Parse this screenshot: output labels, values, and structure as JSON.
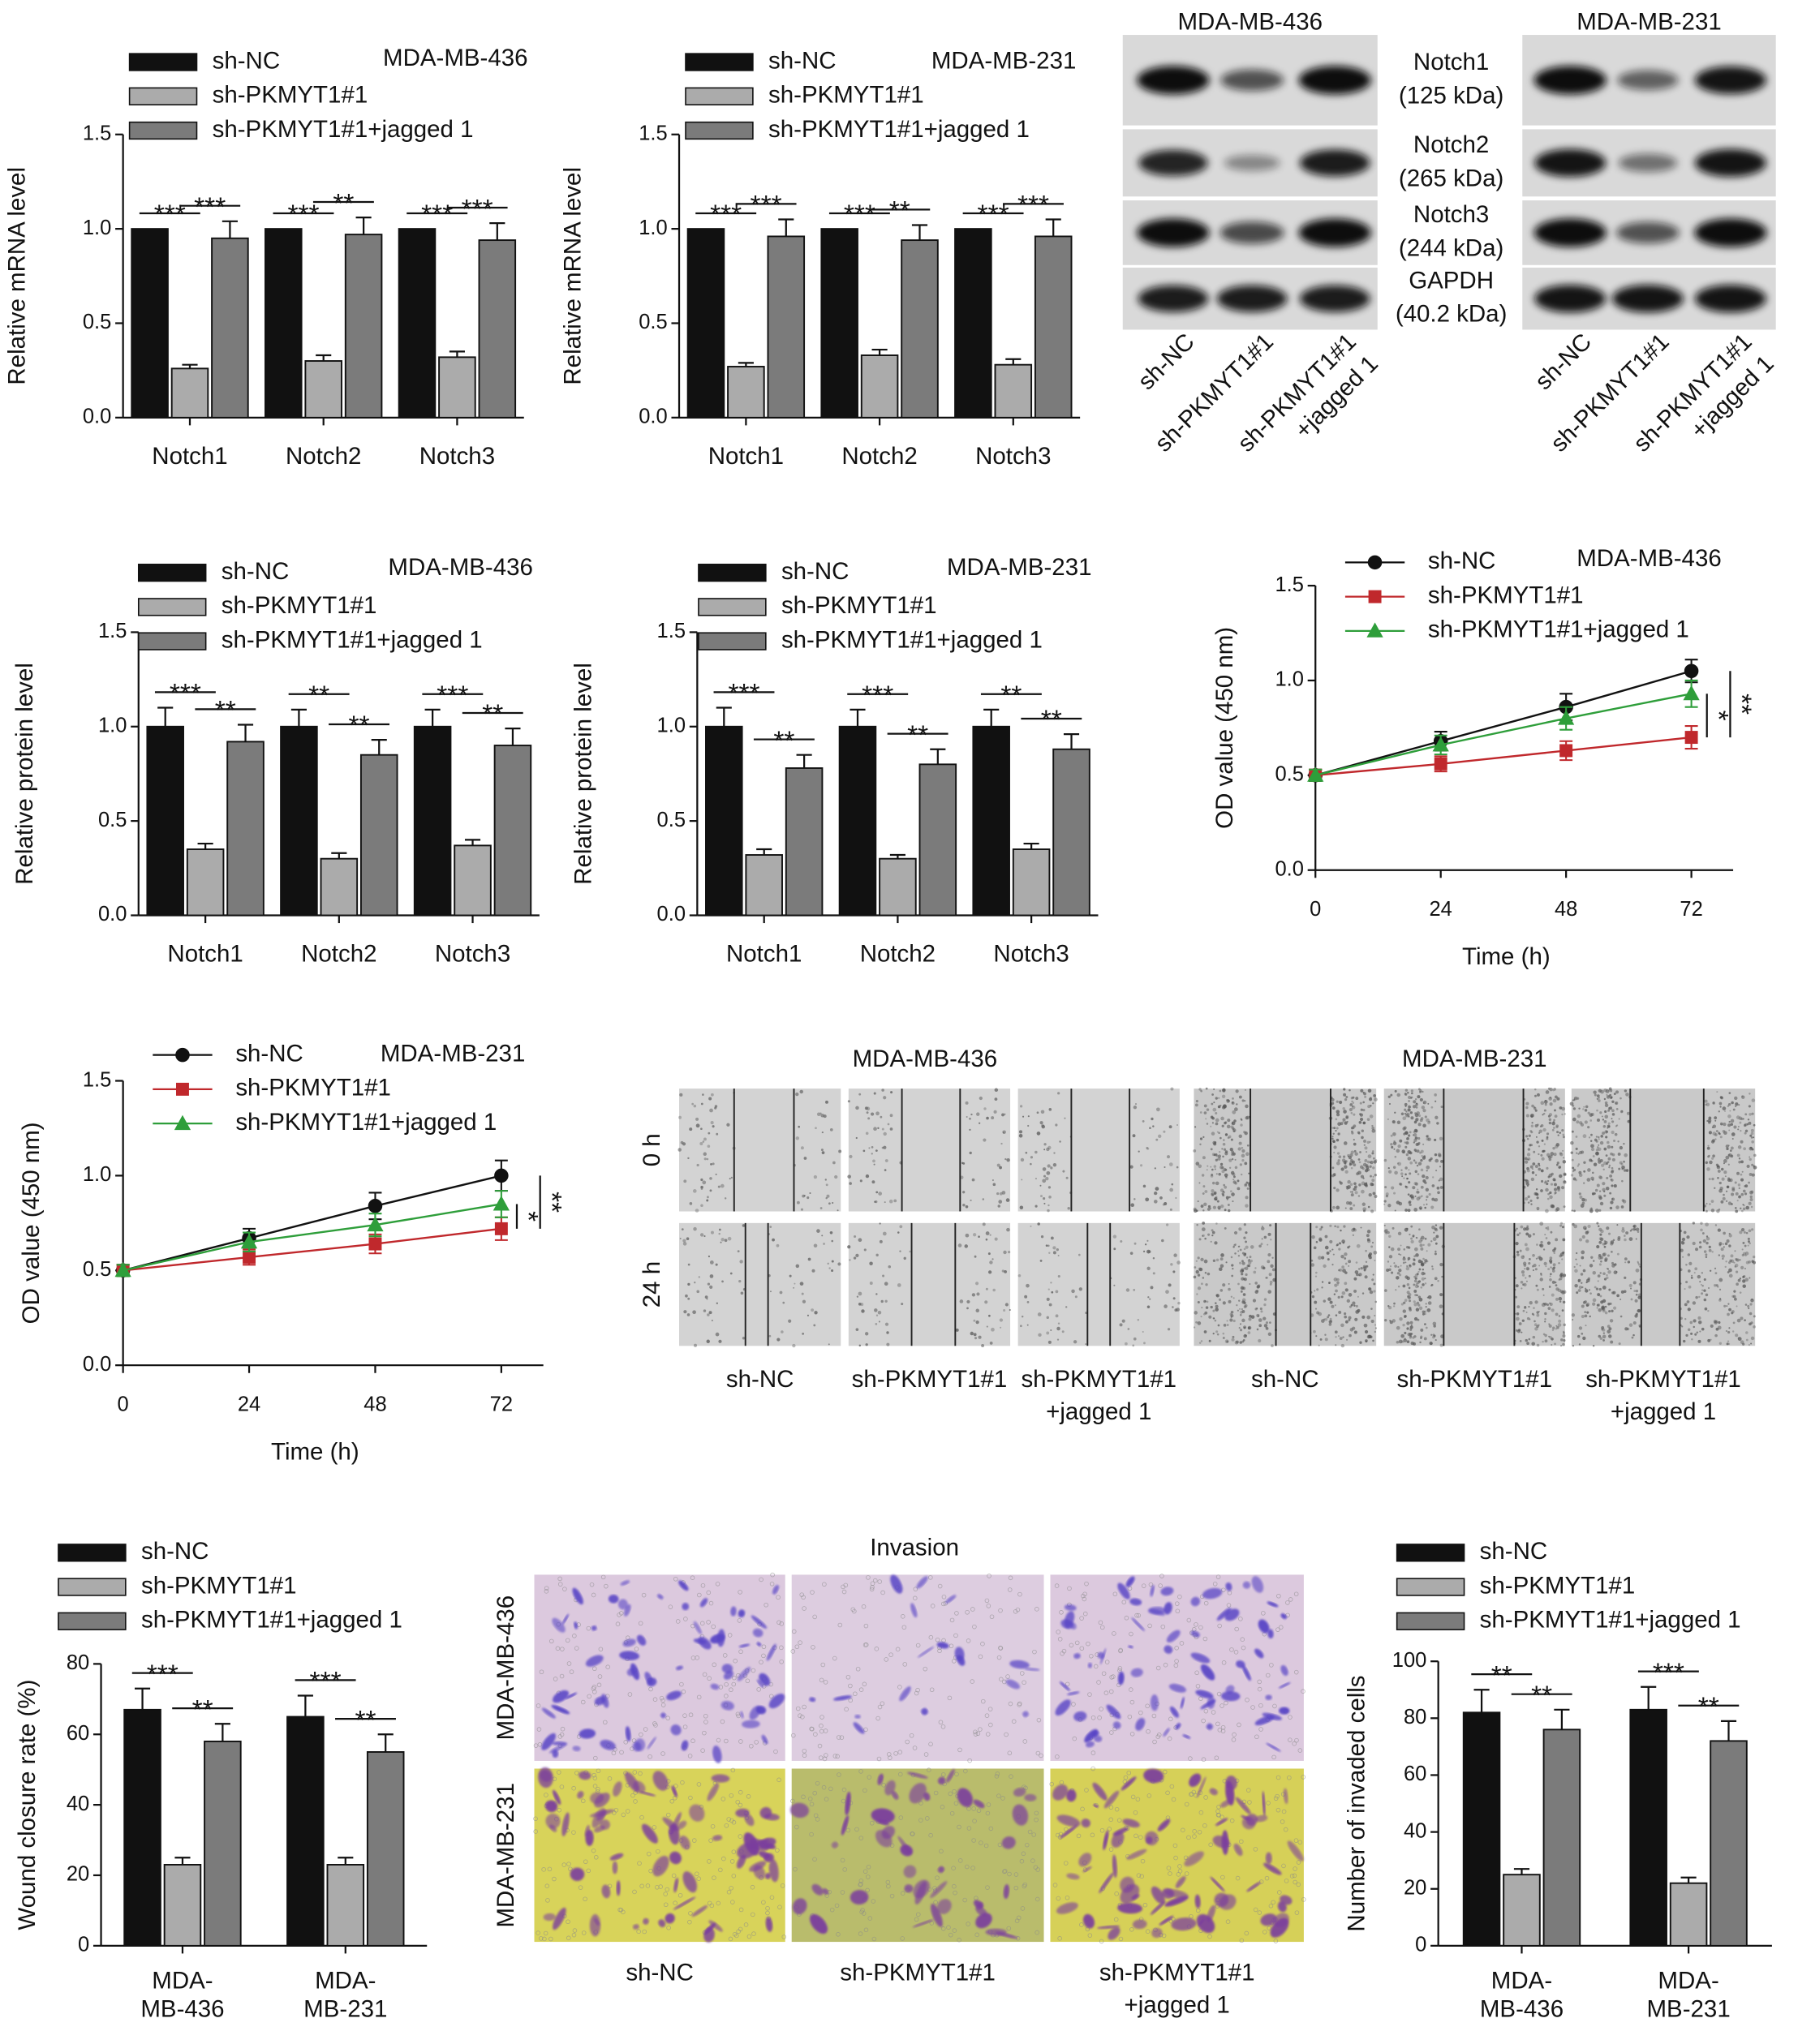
{
  "chart_data": [
    {
      "type": "bar",
      "cell_line": "MDA-MB-436",
      "ylabel": "Relative mRNA level",
      "categories": [
        "Notch1",
        "Notch2",
        "Notch3"
      ],
      "series": [
        {
          "name": "sh-NC",
          "color": "#111111",
          "values": [
            1.0,
            1.0,
            1.0
          ]
        },
        {
          "name": "sh-PKMYT1#1",
          "color": "#ababab",
          "values": [
            0.26,
            0.3,
            0.32
          ],
          "errors": [
            0.02,
            0.03,
            0.03
          ]
        },
        {
          "name": "sh-PKMYT1#1+jagged 1",
          "color": "#7b7b7b",
          "values": [
            0.95,
            0.97,
            0.94
          ],
          "errors": [
            0.09,
            0.09,
            0.09
          ]
        }
      ],
      "ylim": [
        0,
        1.5
      ],
      "yticks": [
        {
          "value": 0,
          "label": "0.0"
        },
        {
          "value": 0.5,
          "label": "0.5"
        },
        {
          "value": 1,
          "label": "1.0"
        },
        {
          "value": 1.5,
          "label": "1.5"
        }
      ],
      "significance": [
        [
          "***",
          "***"
        ],
        [
          "***",
          "**"
        ],
        [
          "***",
          "***"
        ]
      ]
    },
    {
      "type": "bar",
      "cell_line": "MDA-MB-231",
      "ylabel": "Relative mRNA level",
      "categories": [
        "Notch1",
        "Notch2",
        "Notch3"
      ],
      "series": [
        {
          "name": "sh-NC",
          "color": "#111111",
          "values": [
            1.0,
            1.0,
            1.0
          ]
        },
        {
          "name": "sh-PKMYT1#1",
          "color": "#ababab",
          "values": [
            0.27,
            0.33,
            0.28
          ],
          "errors": [
            0.02,
            0.03,
            0.03
          ]
        },
        {
          "name": "sh-PKMYT1#1+jagged 1",
          "color": "#7b7b7b",
          "values": [
            0.96,
            0.94,
            0.96
          ],
          "errors": [
            0.09,
            0.08,
            0.09
          ]
        }
      ],
      "ylim": [
        0,
        1.5
      ],
      "yticks": [
        {
          "value": 0,
          "label": "0.0"
        },
        {
          "value": 0.5,
          "label": "0.5"
        },
        {
          "value": 1,
          "label": "1.0"
        },
        {
          "value": 1.5,
          "label": "1.5"
        }
      ],
      "significance": [
        [
          "***",
          "***"
        ],
        [
          "***",
          "**"
        ],
        [
          "***",
          "***"
        ]
      ]
    },
    {
      "type": "bar",
      "cell_line": "MDA-MB-436",
      "ylabel": "Relative protein level",
      "categories": [
        "Notch1",
        "Notch2",
        "Notch3"
      ],
      "series": [
        {
          "name": "sh-NC",
          "color": "#111111",
          "values": [
            1.0,
            1.0,
            1.0
          ],
          "errors": [
            0.1,
            0.09,
            0.09
          ]
        },
        {
          "name": "sh-PKMYT1#1",
          "color": "#ababab",
          "values": [
            0.35,
            0.3,
            0.37
          ],
          "errors": [
            0.03,
            0.03,
            0.03
          ]
        },
        {
          "name": "sh-PKMYT1#1+jagged 1",
          "color": "#7b7b7b",
          "values": [
            0.92,
            0.85,
            0.9
          ],
          "errors": [
            0.09,
            0.08,
            0.09
          ]
        }
      ],
      "ylim": [
        0,
        1.5
      ],
      "yticks": [
        {
          "value": 0,
          "label": "0.0"
        },
        {
          "value": 0.5,
          "label": "0.5"
        },
        {
          "value": 1,
          "label": "1.0"
        },
        {
          "value": 1.5,
          "label": "1.5"
        }
      ],
      "significance": [
        [
          "***",
          "**"
        ],
        [
          "**",
          "**"
        ],
        [
          "***",
          "**"
        ]
      ]
    },
    {
      "type": "bar",
      "cell_line": "MDA-MB-231",
      "ylabel": "Relative protein level",
      "categories": [
        "Notch1",
        "Notch2",
        "Notch3"
      ],
      "series": [
        {
          "name": "sh-NC",
          "color": "#111111",
          "values": [
            1.0,
            1.0,
            1.0
          ],
          "errors": [
            0.1,
            0.09,
            0.09
          ]
        },
        {
          "name": "sh-PKMYT1#1",
          "color": "#ababab",
          "values": [
            0.32,
            0.3,
            0.35
          ],
          "errors": [
            0.03,
            0.02,
            0.03
          ]
        },
        {
          "name": "sh-PKMYT1#1+jagged 1",
          "color": "#7b7b7b",
          "values": [
            0.78,
            0.8,
            0.88
          ],
          "errors": [
            0.07,
            0.08,
            0.08
          ]
        }
      ],
      "ylim": [
        0,
        1.5
      ],
      "yticks": [
        {
          "value": 0,
          "label": "0.0"
        },
        {
          "value": 0.5,
          "label": "0.5"
        },
        {
          "value": 1,
          "label": "1.0"
        },
        {
          "value": 1.5,
          "label": "1.5"
        }
      ],
      "significance": [
        [
          "***",
          "**"
        ],
        [
          "***",
          "**"
        ],
        [
          "**",
          "**"
        ]
      ]
    },
    {
      "type": "line",
      "cell_line": "MDA-MB-436",
      "ylabel": "OD value (450 nm)",
      "xlabel": "Time (h)",
      "x": [
        0,
        24,
        48,
        72
      ],
      "series": [
        {
          "name": "sh-NC",
          "color": "#111111",
          "marker": "circle",
          "values": [
            0.5,
            0.68,
            0.86,
            1.05
          ],
          "errors": [
            0.03,
            0.05,
            0.07,
            0.06
          ]
        },
        {
          "name": "sh-PKMYT1#1",
          "color": "#c0282c",
          "marker": "square",
          "values": [
            0.5,
            0.56,
            0.63,
            0.7
          ],
          "errors": [
            0.03,
            0.04,
            0.05,
            0.06
          ]
        },
        {
          "name": "sh-PKMYT1#1+jagged 1",
          "color": "#2e9e3a",
          "marker": "triangle",
          "values": [
            0.5,
            0.66,
            0.8,
            0.93
          ],
          "errors": [
            0.03,
            0.05,
            0.06,
            0.07
          ]
        }
      ],
      "xlim": [
        0,
        80
      ],
      "xticks": [
        0,
        24,
        48,
        72
      ],
      "ylim": [
        0,
        1.5
      ],
      "yticks": [
        {
          "value": 0,
          "label": "0.0"
        },
        {
          "value": 0.5,
          "label": "0.5"
        },
        {
          "value": 1,
          "label": "1.0"
        },
        {
          "value": 1.5,
          "label": "1.5"
        }
      ],
      "significance": [
        "*",
        "**"
      ]
    },
    {
      "type": "line",
      "cell_line": "MDA-MB-231",
      "ylabel": "OD value (450 nm)",
      "xlabel": "Time (h)",
      "x": [
        0,
        24,
        48,
        72
      ],
      "series": [
        {
          "name": "sh-NC",
          "color": "#111111",
          "marker": "circle",
          "values": [
            0.5,
            0.67,
            0.84,
            1.0
          ],
          "errors": [
            0.03,
            0.05,
            0.07,
            0.08
          ]
        },
        {
          "name": "sh-PKMYT1#1",
          "color": "#c0282c",
          "marker": "square",
          "values": [
            0.5,
            0.57,
            0.64,
            0.72
          ],
          "errors": [
            0.03,
            0.04,
            0.05,
            0.06
          ]
        },
        {
          "name": "sh-PKMYT1#1+jagged 1",
          "color": "#2e9e3a",
          "marker": "triangle",
          "values": [
            0.5,
            0.65,
            0.74,
            0.85
          ],
          "errors": [
            0.03,
            0.05,
            0.06,
            0.07
          ]
        }
      ],
      "xlim": [
        0,
        80
      ],
      "xticks": [
        0,
        24,
        48,
        72
      ],
      "ylim": [
        0,
        1.5
      ],
      "yticks": [
        {
          "value": 0,
          "label": "0.0"
        },
        {
          "value": 0.5,
          "label": "0.5"
        },
        {
          "value": 1,
          "label": "1.0"
        },
        {
          "value": 1.5,
          "label": "1.5"
        }
      ],
      "significance": [
        "*",
        "**"
      ]
    },
    {
      "type": "bar",
      "ylabel": "Wound closure rate (%)",
      "categories": [
        "MDA-MB-436",
        "MDA-MB-231"
      ],
      "series": [
        {
          "name": "sh-NC",
          "color": "#111111",
          "values": [
            67,
            65
          ],
          "errors": [
            6,
            6
          ]
        },
        {
          "name": "sh-PKMYT1#1",
          "color": "#ababab",
          "values": [
            23,
            23
          ],
          "errors": [
            2,
            2
          ]
        },
        {
          "name": "sh-PKMYT1#1+jagged 1",
          "color": "#7b7b7b",
          "values": [
            58,
            55
          ],
          "errors": [
            5,
            5
          ]
        }
      ],
      "ylim": [
        0,
        80
      ],
      "yticks": [
        0,
        20,
        40,
        60,
        80
      ],
      "significance": [
        [
          "***",
          "**"
        ],
        [
          "***",
          "**"
        ]
      ]
    },
    {
      "type": "bar",
      "ylabel": "Number of invaded cells",
      "categories": [
        "MDA-MB-436",
        "MDA-MB-231"
      ],
      "series": [
        {
          "name": "sh-NC",
          "color": "#111111",
          "values": [
            82,
            83
          ],
          "errors": [
            8,
            8
          ]
        },
        {
          "name": "sh-PKMYT1#1",
          "color": "#ababab",
          "values": [
            25,
            22
          ],
          "errors": [
            2,
            2
          ]
        },
        {
          "name": "sh-PKMYT1#1+jagged 1",
          "color": "#7b7b7b",
          "values": [
            76,
            72
          ],
          "errors": [
            7,
            7
          ]
        }
      ],
      "ylim": [
        0,
        100
      ],
      "yticks": [
        0,
        20,
        40,
        60,
        80,
        100
      ],
      "significance": [
        [
          "**",
          "**"
        ],
        [
          "***",
          "**"
        ]
      ]
    }
  ],
  "western_blot": {
    "cell_lines": [
      "MDA-MB-436",
      "MDA-MB-231"
    ],
    "proteins": [
      [
        "Notch1",
        "(125 kDa)"
      ],
      [
        "Notch2",
        "(265 kDa)"
      ],
      [
        "Notch3",
        "(244 kDa)"
      ],
      [
        "GAPDH",
        "(40.2 kDa)"
      ]
    ],
    "lanes": [
      [
        "sh-NC"
      ],
      [
        "sh-PKMYT1#1"
      ],
      [
        "sh-PKMYT1#1",
        "+jagged 1"
      ]
    ]
  },
  "wound_healing": {
    "cell_lines": [
      "MDA-MB-436",
      "MDA-MB-231"
    ],
    "timepoints": [
      "0 h",
      "24 h"
    ],
    "lanes": [
      [
        "sh-NC"
      ],
      [
        "sh-PKMYT1#1"
      ],
      [
        "sh-PKMYT1#1",
        "+jagged 1"
      ]
    ]
  },
  "invasion": {
    "title": "Invasion",
    "cell_lines": [
      "MDA-MB-436",
      "MDA-MB-231"
    ],
    "lanes": [
      [
        "sh-NC"
      ],
      [
        "sh-PKMYT1#1"
      ],
      [
        "sh-PKMYT1#1",
        "+jagged 1"
      ]
    ]
  }
}
